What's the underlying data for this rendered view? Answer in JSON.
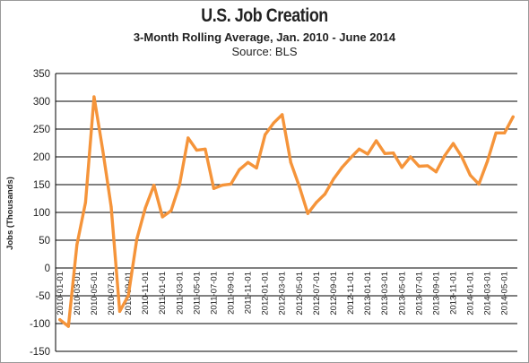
{
  "chart_data": {
    "type": "line",
    "title": "U.S. Job Creation",
    "subtitle": "3-Month Rolling Average, Jan. 2010 - June 2014",
    "source": "Source: BLS",
    "ylabel": "Jobs (Thousands)",
    "xlabel": "",
    "ylim": [
      -150,
      350
    ],
    "yticks": [
      -150,
      -100,
      -50,
      0,
      50,
      100,
      150,
      200,
      250,
      300,
      350
    ],
    "grid": true,
    "legend": "none",
    "color": "#f5943a",
    "x": [
      "2010-01-01",
      "2010-02-01",
      "2010-03-01",
      "2010-04-01",
      "2010-05-01",
      "2010-06-01",
      "2010-07-01",
      "2010-08-01",
      "2010-09-01",
      "2010-10-01",
      "2010-11-01",
      "2010-12-01",
      "2011-01-01",
      "2011-02-01",
      "2011-03-01",
      "2011-04-01",
      "2011-05-01",
      "2011-06-01",
      "2011-07-01",
      "2011-08-01",
      "2011-09-01",
      "2011-10-01",
      "2011-11-01",
      "2011-12-01",
      "2012-01-01",
      "2012-02-01",
      "2012-03-01",
      "2012-04-01",
      "2012-05-01",
      "2012-06-01",
      "2012-07-01",
      "2012-08-01",
      "2012-09-01",
      "2012-10-01",
      "2012-11-01",
      "2012-12-01",
      "2013-01-01",
      "2013-02-01",
      "2013-03-01",
      "2013-04-01",
      "2013-05-01",
      "2013-06-01",
      "2013-07-01",
      "2013-08-01",
      "2013-09-01",
      "2013-10-01",
      "2013-11-01",
      "2013-12-01",
      "2014-01-01",
      "2014-02-01",
      "2014-03-01",
      "2014-04-01",
      "2014-05-01",
      "2014-06-01"
    ],
    "xtick_labels": [
      "2010-01-01",
      "2010-03-01",
      "2010-05-01",
      "2010-07-01",
      "2010-09-01",
      "2010-11-01",
      "2011-01-01",
      "2011-03-01",
      "2011-05-01",
      "2011-07-01",
      "2011-09-01",
      "2011-11-01",
      "2012-01-01",
      "2012-03-01",
      "2012-05-01",
      "2012-07-01",
      "2012-09-01",
      "2012-11-01",
      "2013-01-01",
      "2013-03-01",
      "2013-05-01",
      "2013-07-01",
      "2013-09-01",
      "2013-11-01",
      "2014-01-01",
      "2014-03-01",
      "2014-05-01"
    ],
    "series": [
      {
        "name": "",
        "values": [
          -93,
          -105,
          42,
          118,
          308,
          213,
          110,
          -78,
          -50,
          52,
          108,
          149,
          92,
          103,
          150,
          234,
          212,
          214,
          143,
          149,
          151,
          177,
          190,
          180,
          240,
          261,
          276,
          190,
          147,
          98,
          118,
          133,
          160,
          181,
          198,
          214,
          205,
          229,
          206,
          207,
          181,
          200,
          183,
          184,
          173,
          202,
          224,
          200,
          167,
          151,
          192,
          243,
          243,
          272
        ]
      }
    ]
  }
}
